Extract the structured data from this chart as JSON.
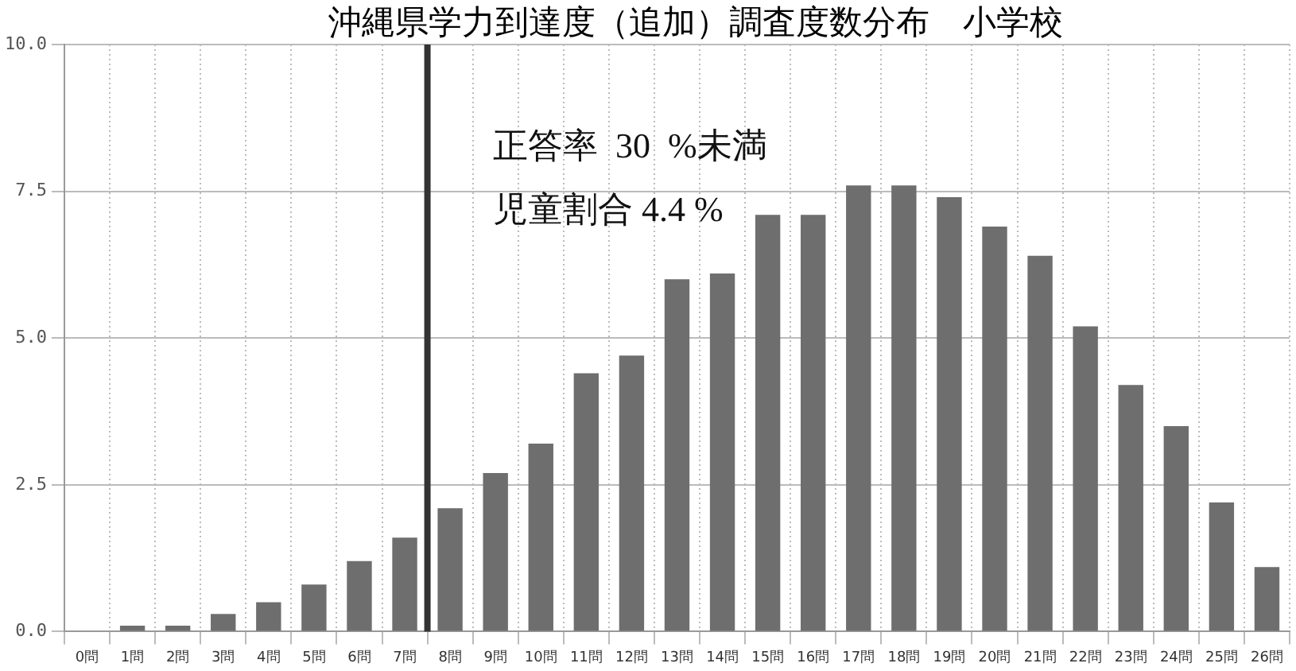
{
  "chart_data": {
    "type": "bar",
    "title": "沖縄県学力到達度（追加）調査度数分布　小学校",
    "categories": [
      "0問",
      "1問",
      "2問",
      "3問",
      "4問",
      "5問",
      "6問",
      "7問",
      "8問",
      "9問",
      "10問",
      "11問",
      "12問",
      "13問",
      "14問",
      "15問",
      "16問",
      "17問",
      "18問",
      "19問",
      "20問",
      "21問",
      "22問",
      "23問",
      "24問",
      "25問",
      "26問"
    ],
    "values": [
      0,
      0.1,
      0.1,
      0.3,
      0.5,
      0.8,
      1.2,
      1.6,
      2.1,
      2.7,
      3.2,
      4.4,
      4.7,
      6.0,
      6.1,
      7.1,
      7.1,
      7.6,
      7.6,
      7.4,
      6.9,
      6.4,
      5.2,
      4.2,
      3.5,
      2.2,
      1.1
    ],
    "color": "#6e6e6e",
    "ylim": [
      0,
      10
    ],
    "yticks": [
      {
        "value": 0,
        "label": "0.0"
      },
      {
        "value": 2.5,
        "label": "2.5"
      },
      {
        "value": 5,
        "label": "5.0"
      },
      {
        "value": 7.5,
        "label": "7.5"
      },
      {
        "value": 10,
        "label": "10.0"
      }
    ],
    "grid": true,
    "ref_lines": [
      {
        "axis": "x",
        "value": "8問",
        "color": "#333333"
      }
    ],
    "annotations": [
      "正答率  30  %未満",
      "児童割合 4.4 %"
    ]
  }
}
